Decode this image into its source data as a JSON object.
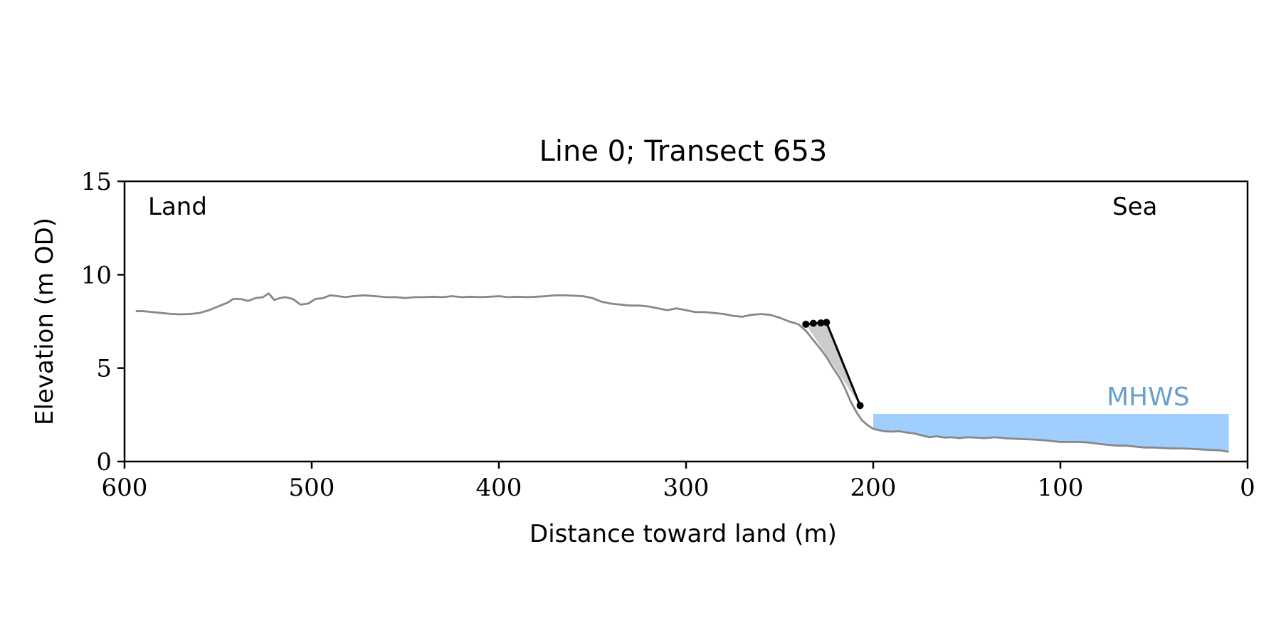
{
  "chart_data": {
    "type": "line",
    "title": "Line 0; Transect 653",
    "xlabel": "Distance toward land (m)",
    "ylabel": "Elevation (m OD)",
    "xlim": [
      600,
      0
    ],
    "ylim": [
      0,
      15
    ],
    "x_reversed": true,
    "xticks": [
      600,
      500,
      400,
      300,
      200,
      100,
      0
    ],
    "yticks": [
      0,
      5,
      10,
      15
    ],
    "annotations": {
      "land": "Land",
      "sea": "Sea",
      "mhws": "MHWS"
    },
    "grid": false,
    "colors": {
      "profile": "#888888",
      "cliff": "#000000",
      "shade": "#cccccc",
      "mhws_fill": "#a0cfff",
      "mhws_text": "#6a9fd0"
    },
    "mhws": {
      "level": 2.55,
      "x_from": 200,
      "x_to": 10
    },
    "series": [
      {
        "role": "profile",
        "x": [
          594,
          590,
          585,
          580,
          575,
          570,
          565,
          560,
          555,
          550,
          545,
          542,
          538,
          534,
          530,
          526,
          523,
          520,
          517,
          514,
          510,
          506,
          502,
          498,
          494,
          490,
          486,
          482,
          478,
          472,
          466,
          460,
          455,
          450,
          445,
          440,
          435,
          430,
          425,
          420,
          415,
          410,
          405,
          400,
          395,
          390,
          385,
          380,
          375,
          370,
          365,
          360,
          355,
          350,
          345,
          340,
          335,
          330,
          325,
          320,
          315,
          310,
          305,
          300,
          295,
          290,
          285,
          280,
          275,
          270,
          265,
          260,
          255,
          250,
          245,
          240,
          236,
          232,
          228,
          225,
          222,
          218,
          215,
          212,
          209,
          206,
          203,
          200,
          197,
          194,
          190,
          186,
          182,
          178,
          174,
          170,
          166,
          162,
          158,
          154,
          150,
          145,
          140,
          135,
          130,
          125,
          120,
          115,
          110,
          105,
          100,
          95,
          90,
          85,
          80,
          75,
          70,
          65,
          60,
          55,
          50,
          45,
          40,
          35,
          30,
          25,
          20,
          15,
          12,
          10
        ],
        "y": [
          8.05,
          8.05,
          8.0,
          7.95,
          7.9,
          7.88,
          7.9,
          7.95,
          8.1,
          8.3,
          8.5,
          8.7,
          8.7,
          8.6,
          8.75,
          8.8,
          9.0,
          8.65,
          8.75,
          8.8,
          8.7,
          8.4,
          8.45,
          8.7,
          8.75,
          8.9,
          8.85,
          8.8,
          8.85,
          8.9,
          8.85,
          8.8,
          8.8,
          8.75,
          8.8,
          8.8,
          8.82,
          8.8,
          8.85,
          8.8,
          8.82,
          8.8,
          8.82,
          8.85,
          8.8,
          8.82,
          8.8,
          8.82,
          8.85,
          8.9,
          8.9,
          8.88,
          8.85,
          8.75,
          8.55,
          8.45,
          8.4,
          8.35,
          8.35,
          8.3,
          8.2,
          8.1,
          8.2,
          8.1,
          8.0,
          8.0,
          7.95,
          7.9,
          7.8,
          7.75,
          7.85,
          7.9,
          7.85,
          7.7,
          7.5,
          7.35,
          7.0,
          6.5,
          6.0,
          5.6,
          5.1,
          4.5,
          3.9,
          3.2,
          2.65,
          2.2,
          1.95,
          1.75,
          1.68,
          1.62,
          1.6,
          1.62,
          1.55,
          1.5,
          1.4,
          1.3,
          1.35,
          1.28,
          1.3,
          1.25,
          1.3,
          1.28,
          1.25,
          1.3,
          1.25,
          1.22,
          1.2,
          1.18,
          1.15,
          1.1,
          1.05,
          1.05,
          1.05,
          1.02,
          0.95,
          0.9,
          0.85,
          0.85,
          0.8,
          0.75,
          0.75,
          0.72,
          0.7,
          0.7,
          0.68,
          0.65,
          0.62,
          0.6,
          0.55,
          0.52
        ]
      },
      {
        "role": "cliff",
        "x": [
          236,
          232,
          228,
          225,
          207
        ],
        "y": [
          7.35,
          7.4,
          7.42,
          7.45,
          3.0
        ]
      }
    ]
  }
}
